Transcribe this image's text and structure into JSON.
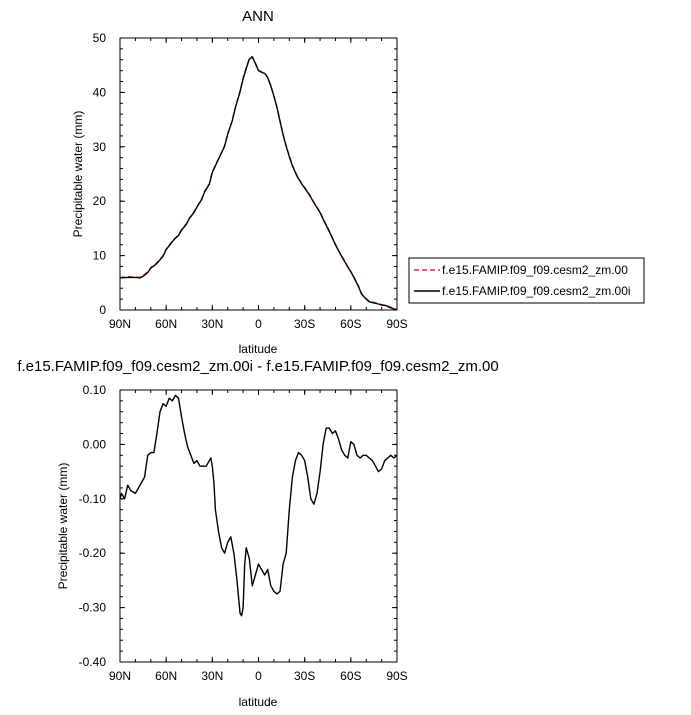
{
  "chart_data": [
    {
      "type": "line",
      "title": "ANN",
      "xlabel": "latitude",
      "ylabel": "Precipitable water (mm)",
      "xlim": [
        90,
        -90
      ],
      "ylim": [
        0,
        50
      ],
      "xticks": [
        90,
        60,
        30,
        0,
        -30,
        -60,
        -90
      ],
      "xtick_labels": [
        "90N",
        "60N",
        "30N",
        "0",
        "30S",
        "60S",
        "90S"
      ],
      "yticks": [
        0,
        10,
        20,
        30,
        40,
        50
      ],
      "ytick_labels": [
        "0",
        "10",
        "20",
        "30",
        "40",
        "50"
      ],
      "grid": false,
      "legend": "right-outside",
      "x": [
        90,
        85,
        80,
        77,
        75,
        72,
        70,
        67,
        65,
        62,
        60,
        57,
        55,
        52,
        50,
        47,
        45,
        42,
        40,
        37,
        35,
        32,
        30,
        27,
        25,
        22,
        20,
        17,
        15,
        12,
        10,
        8,
        6,
        4,
        2,
        0,
        -2,
        -4,
        -6,
        -8,
        -10,
        -12,
        -14,
        -16,
        -18,
        -20,
        -22,
        -25,
        -28,
        -30,
        -33,
        -36,
        -40,
        -42,
        -45,
        -48,
        -50,
        -52,
        -55,
        -58,
        -60,
        -62,
        -65,
        -67,
        -70,
        -72,
        -75,
        -78,
        -80,
        -83,
        -85,
        -88,
        -90
      ],
      "series": [
        {
          "name": "f.e15.FAMIP.f09_f09.cesm2_zm.00",
          "color": "#e8262b",
          "dash": "dashed",
          "values": [
            6.0,
            6.1,
            6.1,
            6.0,
            6.3,
            7.0,
            7.8,
            8.4,
            9.0,
            10.0,
            11.2,
            12.3,
            13.0,
            13.8,
            14.8,
            15.8,
            16.9,
            18.0,
            19.0,
            20.4,
            21.8,
            23.2,
            25.4,
            27.2,
            28.4,
            30.2,
            32.4,
            34.9,
            37.3,
            40.2,
            42.6,
            44.5,
            46.2,
            46.6,
            45.4,
            44.1,
            43.8,
            43.6,
            42.8,
            41.3,
            39.4,
            37.3,
            34.8,
            32.3,
            30.2,
            28.3,
            26.6,
            24.7,
            23.3,
            22.5,
            21.3,
            19.8,
            18.0,
            16.8,
            15.1,
            13.3,
            12.1,
            11.0,
            9.5,
            8.0,
            7.1,
            6.1,
            4.4,
            3.0,
            2.1,
            1.6,
            1.4,
            1.2,
            1.0,
            0.9,
            0.6,
            0.3,
            0.1
          ]
        },
        {
          "name": "f.e15.FAMIP.f09_f09.cesm2_zm.00i",
          "color": "#000000",
          "dash": "solid",
          "values": [
            5.9,
            6.0,
            6.0,
            5.9,
            6.2,
            6.9,
            7.7,
            8.3,
            8.9,
            9.9,
            11.1,
            12.2,
            12.9,
            13.7,
            14.7,
            15.7,
            16.8,
            17.9,
            18.9,
            20.3,
            21.7,
            23.1,
            25.3,
            27.1,
            28.3,
            30.1,
            32.3,
            34.8,
            37.2,
            40.1,
            42.5,
            44.4,
            46.1,
            46.5,
            45.3,
            44.0,
            43.7,
            43.5,
            42.7,
            41.2,
            39.3,
            37.2,
            34.7,
            32.2,
            30.1,
            28.2,
            26.5,
            24.6,
            23.2,
            22.4,
            21.2,
            19.7,
            17.9,
            16.7,
            15.0,
            13.2,
            12.0,
            10.9,
            9.4,
            7.9,
            7.0,
            6.0,
            4.3,
            2.9,
            2.0,
            1.5,
            1.3,
            1.1,
            0.9,
            0.8,
            0.5,
            0.2,
            0.0
          ]
        }
      ]
    },
    {
      "type": "line",
      "title": "f.e15.FAMIP.f09_f09.cesm2_zm.00i - f.e15.FAMIP.f09_f09.cesm2_zm.00",
      "xlabel": "latitude",
      "ylabel": "Precipitable water (mm)",
      "xlim": [
        90,
        -90
      ],
      "ylim": [
        -0.4,
        0.1
      ],
      "xticks": [
        90,
        60,
        30,
        0,
        -30,
        -60,
        -90
      ],
      "xtick_labels": [
        "90N",
        "60N",
        "30N",
        "0",
        "30S",
        "60S",
        "90S"
      ],
      "yticks": [
        0.1,
        0.0,
        -0.1,
        -0.2,
        -0.3,
        -0.4
      ],
      "ytick_labels": [
        "0.10",
        "0.00",
        "-0.10",
        "-0.20",
        "-0.30",
        "-0.40"
      ],
      "grid": false,
      "x": [
        90,
        89,
        87,
        85,
        83,
        80,
        78,
        76,
        74,
        72,
        70,
        68,
        66,
        64,
        62,
        60,
        58,
        56,
        54,
        52,
        50,
        48,
        46,
        44,
        42,
        40,
        38,
        36,
        34,
        32,
        31,
        30,
        29,
        28,
        26,
        24,
        22,
        20,
        18,
        16,
        14,
        12,
        11,
        10,
        9,
        8,
        6,
        4,
        2,
        0,
        -2,
        -4,
        -6,
        -8,
        -10,
        -12,
        -14,
        -16,
        -18,
        -20,
        -22,
        -24,
        -26,
        -28,
        -30,
        -32,
        -34,
        -36,
        -38,
        -40,
        -42,
        -44,
        -46,
        -48,
        -50,
        -52,
        -54,
        -56,
        -58,
        -60,
        -62,
        -64,
        -66,
        -68,
        -70,
        -72,
        -74,
        -76,
        -78,
        -80,
        -82,
        -84,
        -86,
        -88,
        -90
      ],
      "series": [
        {
          "name": "",
          "color": "#000000",
          "dash": "solid",
          "values": [
            -0.1,
            -0.09,
            -0.1,
            -0.075,
            -0.085,
            -0.09,
            -0.08,
            -0.07,
            -0.06,
            -0.02,
            -0.015,
            -0.015,
            0.02,
            0.06,
            0.075,
            0.07,
            0.085,
            0.08,
            0.09,
            0.085,
            0.05,
            0.02,
            -0.005,
            -0.02,
            -0.035,
            -0.03,
            -0.04,
            -0.04,
            -0.04,
            -0.03,
            -0.025,
            -0.04,
            -0.07,
            -0.12,
            -0.16,
            -0.19,
            -0.2,
            -0.18,
            -0.17,
            -0.2,
            -0.25,
            -0.31,
            -0.315,
            -0.3,
            -0.22,
            -0.19,
            -0.21,
            -0.26,
            -0.24,
            -0.22,
            -0.23,
            -0.24,
            -0.23,
            -0.26,
            -0.27,
            -0.275,
            -0.27,
            -0.22,
            -0.2,
            -0.12,
            -0.06,
            -0.03,
            -0.015,
            -0.02,
            -0.03,
            -0.06,
            -0.1,
            -0.11,
            -0.09,
            -0.05,
            0.0,
            0.03,
            0.03,
            0.02,
            0.025,
            0.01,
            -0.01,
            -0.02,
            -0.025,
            0.005,
            0.0,
            -0.02,
            -0.025,
            -0.02,
            -0.02,
            -0.025,
            -0.03,
            -0.04,
            -0.05,
            -0.045,
            -0.03,
            -0.025,
            -0.02,
            -0.025,
            -0.02
          ]
        }
      ]
    }
  ]
}
